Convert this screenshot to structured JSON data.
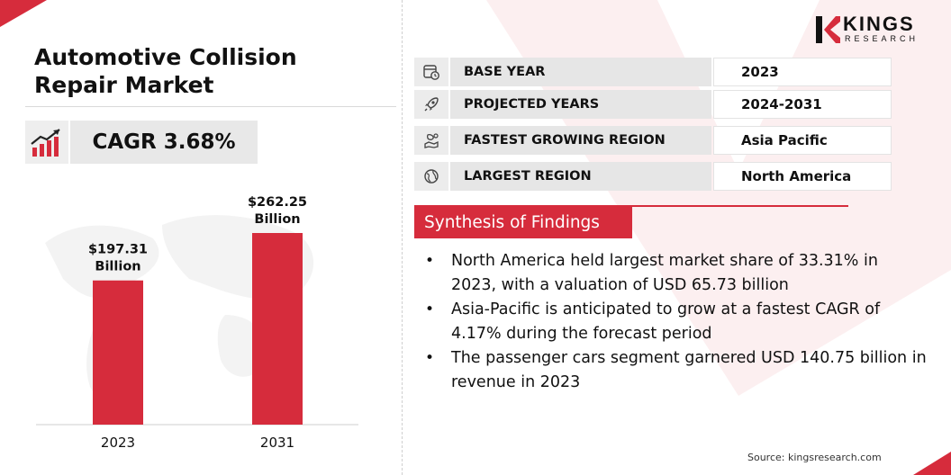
{
  "title": "Automotive Collision Repair Market",
  "cagr": "CAGR 3.68%",
  "logo": {
    "name": "KINGS",
    "sub": "RESEARCH"
  },
  "info_rows": [
    {
      "icon": "calendar-clock-icon",
      "label": "BASE YEAR",
      "value": "2023"
    },
    {
      "icon": "rocket-icon",
      "label": "PROJECTED YEARS",
      "value": "2024-2031"
    },
    {
      "icon": "map-region-icon",
      "label": "FASTEST GROWING REGION",
      "value": "Asia Pacific"
    },
    {
      "icon": "globe-icon",
      "label": "LARGEST REGION",
      "value": "North America"
    }
  ],
  "synthesis_title": "Synthesis of Findings",
  "findings": [
    "North America held largest market share of 33.31% in 2023, with a valuation of USD 65.73 billion",
    "Asia-Pacific is anticipated to grow at a fastest CAGR of 4.17% during the forecast period",
    "The passenger cars segment garnered USD 140.75 billion in revenue in 2023"
  ],
  "source": "Source: kingsresearch.com",
  "colors": {
    "accent": "#d62c3c",
    "text": "#111111"
  },
  "chart_data": {
    "type": "bar",
    "categories": [
      "2023",
      "2031"
    ],
    "values": [
      197.31,
      262.25
    ],
    "value_labels": [
      "$197.31 Billion",
      "$262.25 Billion"
    ],
    "bar_label_lines": [
      [
        "$197.31",
        "Billion"
      ],
      [
        "$262.25",
        "Billion"
      ]
    ],
    "unit": "USD Billion",
    "color": "#d62c3c",
    "grid": false,
    "ylim": [
      0,
      262.25
    ]
  }
}
